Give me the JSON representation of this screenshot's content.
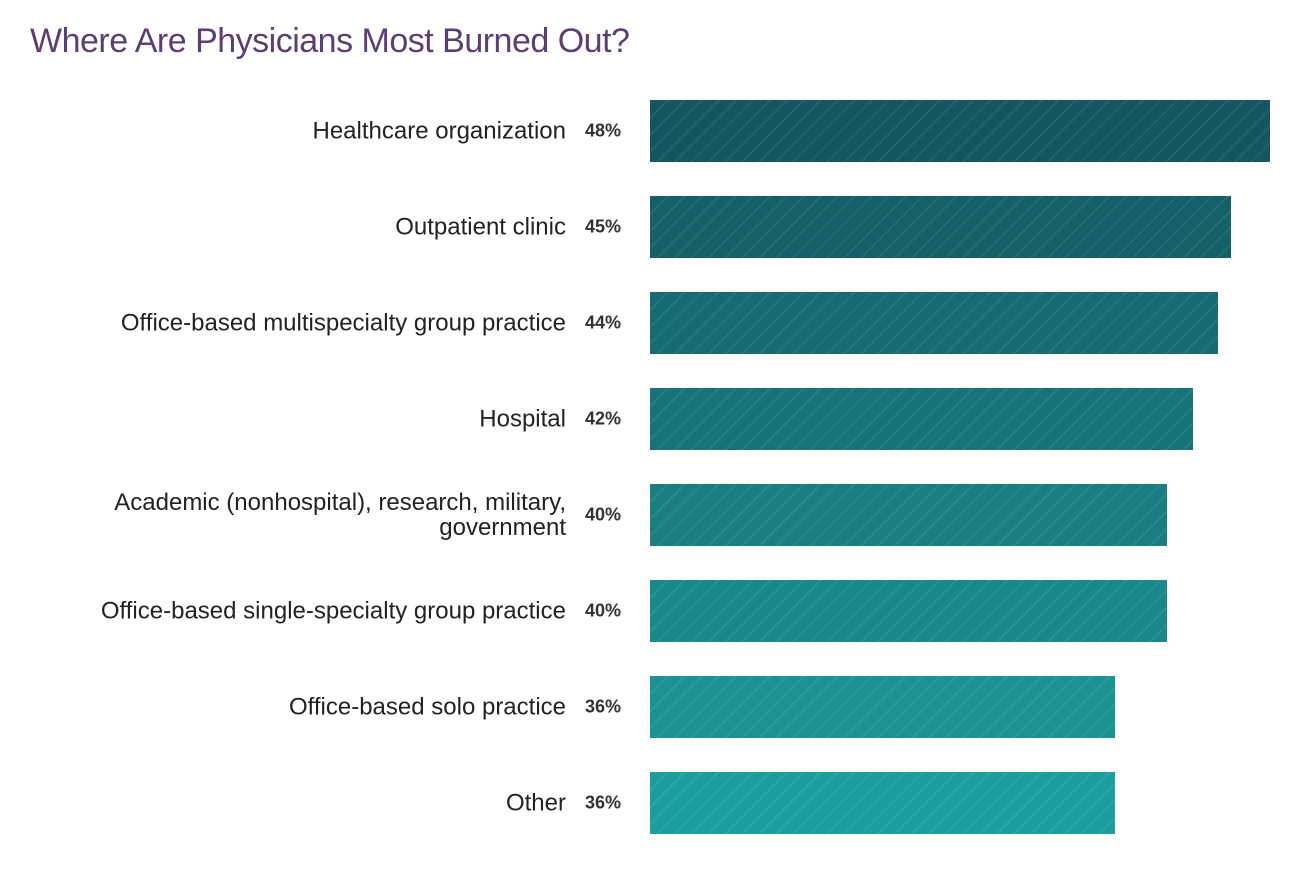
{
  "chart_data": {
    "type": "bar",
    "orientation": "horizontal",
    "title": "Where Are Physicians Most Burned Out?",
    "categories": [
      "Healthcare organization",
      "Outpatient clinic",
      "Office-based multispecialty group practice",
      "Hospital",
      "Academic (nonhospital), research, military, government",
      "Office-based single-specialty group practice",
      "Office-based solo practice",
      "Other"
    ],
    "values": [
      48,
      45,
      44,
      42,
      40,
      40,
      36,
      36
    ],
    "value_labels": [
      "48%",
      "45%",
      "44%",
      "42%",
      "40%",
      "40%",
      "36%",
      "36%"
    ],
    "colors": [
      "#14555f",
      "#155f68",
      "#166a71",
      "#17737a",
      "#187e82",
      "#19888a",
      "#1a9294",
      "#1b9d9e"
    ]
  }
}
